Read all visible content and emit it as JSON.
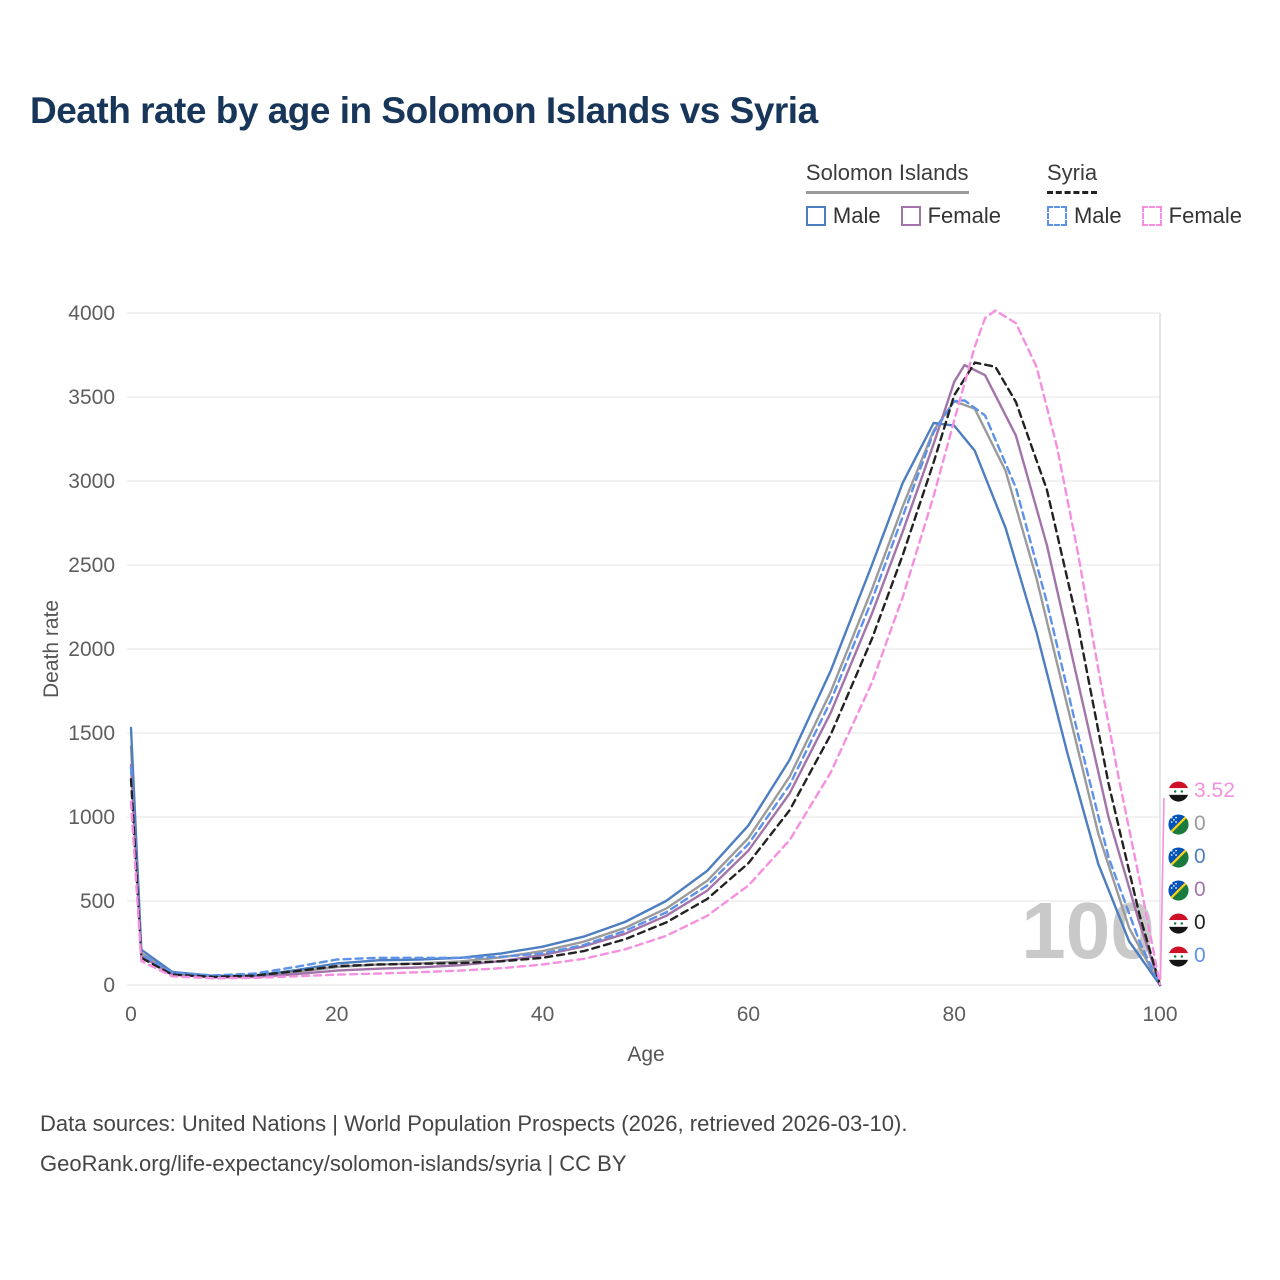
{
  "page": {
    "title": "Death rate by age in Solomon Islands vs Syria",
    "footer_line1": "Data sources: United Nations | World Population Prospects (2026, retrieved 2026-03-10).",
    "footer_line2": "GeoRank.org/life-expectancy/solomon-islands/syria | CC BY"
  },
  "legend": {
    "group1": {
      "label": "Solomon Islands",
      "style": "solid",
      "color": "#9b9b9b"
    },
    "group2": {
      "label": "Syria",
      "style": "dashed",
      "color": "#222222"
    },
    "items": [
      {
        "label": "Male",
        "color": "#4d7ebf",
        "dash": false
      },
      {
        "label": "Female",
        "color": "#a274aa",
        "dash": false
      },
      {
        "label": "Male",
        "color": "#5e92e8",
        "dash": true
      },
      {
        "label": "Female",
        "color": "#f590e0",
        "dash": true
      }
    ]
  },
  "chart_data": {
    "type": "line",
    "title": "Death rate by age in Solomon Islands vs Syria",
    "xlabel": "Age",
    "ylabel": "Death rate",
    "xlim": [
      0,
      100
    ],
    "ylim": [
      0,
      4000
    ],
    "xticks": [
      0,
      20,
      40,
      60,
      80,
      100
    ],
    "yticks": [
      0,
      500,
      1000,
      1500,
      2000,
      2500,
      3000,
      3500,
      4000
    ],
    "grid": "horizontal",
    "legend_position": "top-right",
    "hover_age": "100",
    "series": [
      {
        "id": "solomon-islands-all",
        "name": "Solomon Islands",
        "sex": "Both",
        "color": "#9b9b9b",
        "dash": null,
        "points": [
          [
            0,
            1420
          ],
          [
            1,
            190
          ],
          [
            4,
            70
          ],
          [
            8,
            50
          ],
          [
            12,
            51
          ],
          [
            16,
            76
          ],
          [
            20,
            107
          ],
          [
            24,
            122
          ],
          [
            28,
            128
          ],
          [
            32,
            140
          ],
          [
            36,
            165
          ],
          [
            40,
            202
          ],
          [
            44,
            258
          ],
          [
            48,
            340
          ],
          [
            52,
            455
          ],
          [
            56,
            620
          ],
          [
            60,
            875
          ],
          [
            64,
            1240
          ],
          [
            68,
            1745
          ],
          [
            72,
            2355
          ],
          [
            75,
            2850
          ],
          [
            78,
            3300
          ],
          [
            80,
            3475
          ],
          [
            82,
            3430
          ],
          [
            85,
            3060
          ],
          [
            88,
            2420
          ],
          [
            91,
            1660
          ],
          [
            94,
            900
          ],
          [
            97,
            340
          ],
          [
            100,
            0
          ]
        ]
      },
      {
        "id": "solomon-islands-male",
        "name": "Solomon Islands",
        "sex": "Male",
        "color": "#4d7ebf",
        "dash": null,
        "points": [
          [
            0,
            1530
          ],
          [
            1,
            210
          ],
          [
            4,
            78
          ],
          [
            8,
            55
          ],
          [
            12,
            56
          ],
          [
            16,
            88
          ],
          [
            20,
            128
          ],
          [
            24,
            147
          ],
          [
            28,
            152
          ],
          [
            32,
            162
          ],
          [
            36,
            188
          ],
          [
            40,
            228
          ],
          [
            44,
            288
          ],
          [
            48,
            375
          ],
          [
            52,
            500
          ],
          [
            56,
            680
          ],
          [
            60,
            950
          ],
          [
            64,
            1340
          ],
          [
            68,
            1870
          ],
          [
            72,
            2500
          ],
          [
            75,
            2990
          ],
          [
            78,
            3345
          ],
          [
            80,
            3330
          ],
          [
            82,
            3180
          ],
          [
            85,
            2720
          ],
          [
            88,
            2100
          ],
          [
            91,
            1380
          ],
          [
            94,
            720
          ],
          [
            97,
            260
          ],
          [
            100,
            0
          ]
        ]
      },
      {
        "id": "solomon-islands-female",
        "name": "Solomon Islands",
        "sex": "Female",
        "color": "#a274aa",
        "dash": null,
        "points": [
          [
            0,
            1310
          ],
          [
            1,
            172
          ],
          [
            4,
            63
          ],
          [
            8,
            46
          ],
          [
            12,
            47
          ],
          [
            16,
            64
          ],
          [
            20,
            86
          ],
          [
            24,
            97
          ],
          [
            28,
            105
          ],
          [
            32,
            118
          ],
          [
            36,
            143
          ],
          [
            40,
            178
          ],
          [
            44,
            230
          ],
          [
            48,
            305
          ],
          [
            52,
            412
          ],
          [
            56,
            562
          ],
          [
            60,
            800
          ],
          [
            64,
            1140
          ],
          [
            68,
            1620
          ],
          [
            72,
            2210
          ],
          [
            75,
            2700
          ],
          [
            78,
            3220
          ],
          [
            80,
            3590
          ],
          [
            81,
            3690
          ],
          [
            83,
            3630
          ],
          [
            86,
            3270
          ],
          [
            89,
            2620
          ],
          [
            92,
            1810
          ],
          [
            95,
            1000
          ],
          [
            98,
            370
          ],
          [
            100,
            0
          ]
        ]
      },
      {
        "id": "syria-male",
        "name": "Syria",
        "sex": "Male",
        "color": "#5e92e8",
        "dash": "7 5",
        "points": [
          [
            0,
            1295
          ],
          [
            1,
            182
          ],
          [
            4,
            72
          ],
          [
            8,
            57
          ],
          [
            12,
            68
          ],
          [
            16,
            108
          ],
          [
            20,
            152
          ],
          [
            24,
            162
          ],
          [
            28,
            162
          ],
          [
            32,
            162
          ],
          [
            36,
            168
          ],
          [
            40,
            188
          ],
          [
            44,
            238
          ],
          [
            48,
            322
          ],
          [
            52,
            432
          ],
          [
            56,
            592
          ],
          [
            60,
            838
          ],
          [
            64,
            1190
          ],
          [
            68,
            1690
          ],
          [
            72,
            2290
          ],
          [
            75,
            2790
          ],
          [
            78,
            3290
          ],
          [
            80,
            3475
          ],
          [
            81,
            3480
          ],
          [
            83,
            3390
          ],
          [
            86,
            2960
          ],
          [
            89,
            2280
          ],
          [
            92,
            1500
          ],
          [
            95,
            760
          ],
          [
            98,
            260
          ],
          [
            100,
            0
          ]
        ]
      },
      {
        "id": "syria-all",
        "name": "Syria",
        "sex": "Both",
        "color": "#222222",
        "dash": "7 5",
        "points": [
          [
            0,
            1225
          ],
          [
            1,
            162
          ],
          [
            4,
            62
          ],
          [
            8,
            48
          ],
          [
            12,
            56
          ],
          [
            16,
            82
          ],
          [
            20,
            112
          ],
          [
            24,
            122
          ],
          [
            28,
            126
          ],
          [
            32,
            131
          ],
          [
            36,
            141
          ],
          [
            40,
            162
          ],
          [
            44,
            202
          ],
          [
            48,
            272
          ],
          [
            52,
            372
          ],
          [
            56,
            512
          ],
          [
            60,
            725
          ],
          [
            64,
            1040
          ],
          [
            68,
            1490
          ],
          [
            72,
            2060
          ],
          [
            75,
            2560
          ],
          [
            78,
            3110
          ],
          [
            80,
            3510
          ],
          [
            82,
            3705
          ],
          [
            84,
            3680
          ],
          [
            86,
            3470
          ],
          [
            89,
            2950
          ],
          [
            92,
            2150
          ],
          [
            95,
            1200
          ],
          [
            98,
            420
          ],
          [
            100,
            0
          ]
        ]
      },
      {
        "id": "syria-female",
        "name": "Syria",
        "sex": "Female",
        "color": "#f590e0",
        "dash": "7 5",
        "points": [
          [
            0,
            1090
          ],
          [
            1,
            142
          ],
          [
            4,
            52
          ],
          [
            8,
            40
          ],
          [
            12,
            42
          ],
          [
            16,
            52
          ],
          [
            20,
            62
          ],
          [
            24,
            68
          ],
          [
            28,
            76
          ],
          [
            32,
            86
          ],
          [
            36,
            100
          ],
          [
            40,
            122
          ],
          [
            44,
            156
          ],
          [
            48,
            212
          ],
          [
            52,
            292
          ],
          [
            56,
            412
          ],
          [
            60,
            592
          ],
          [
            64,
            862
          ],
          [
            68,
            1265
          ],
          [
            72,
            1800
          ],
          [
            75,
            2310
          ],
          [
            78,
            2910
          ],
          [
            80,
            3360
          ],
          [
            82,
            3800
          ],
          [
            83,
            3970
          ],
          [
            84,
            4015
          ],
          [
            86,
            3940
          ],
          [
            88,
            3680
          ],
          [
            90,
            3200
          ],
          [
            92,
            2580
          ],
          [
            94,
            1880
          ],
          [
            96,
            1230
          ],
          [
            98,
            630
          ],
          [
            100,
            3.52
          ]
        ]
      }
    ]
  },
  "end_labels": [
    {
      "value": "3.52",
      "color": "#f590e0",
      "flag": "syria"
    },
    {
      "value": "0",
      "color": "#9b9b9b",
      "flag": "solomon"
    },
    {
      "value": "0",
      "color": "#4d7ebf",
      "flag": "solomon"
    },
    {
      "value": "0",
      "color": "#a274aa",
      "flag": "solomon"
    },
    {
      "value": "0",
      "color": "#222222",
      "flag": "syria"
    },
    {
      "value": "0",
      "color": "#5e92e8",
      "flag": "syria"
    }
  ]
}
